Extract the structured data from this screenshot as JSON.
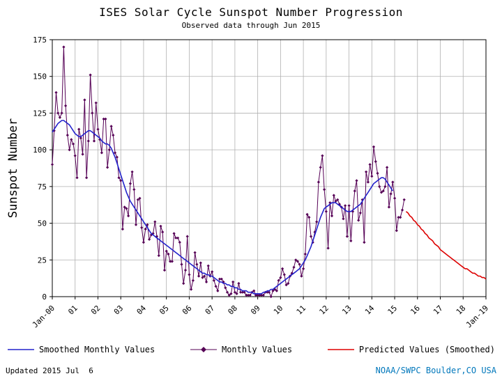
{
  "header": {
    "title": "ISES Solar Cycle Sunspot Number Progression",
    "subtitle": "Observed data through Jun 2015"
  },
  "footer": {
    "updated": "Updated 2015 Jul  6",
    "credit": "NOAA/SWPC Boulder,CO USA",
    "credit_color": "#0077bb"
  },
  "chart_data": {
    "type": "line",
    "title": "ISES Solar Cycle Sunspot Number Progression",
    "subtitle": "Observed data through Jun 2015",
    "xlabel": "",
    "ylabel": "Sunspot Number",
    "ylim": [
      0,
      175
    ],
    "y_ticks": [
      0,
      25,
      50,
      75,
      100,
      125,
      150,
      175
    ],
    "x_tick_labels": [
      "Jan-00",
      "01",
      "02",
      "03",
      "04",
      "05",
      "06",
      "07",
      "08",
      "09",
      "10",
      "11",
      "12",
      "13",
      "14",
      "15",
      "16",
      "17",
      "18",
      "Jan-19"
    ],
    "x_tick_interval_months": 12,
    "x_total_months": 228,
    "grid": true,
    "grid_color": "#b0b0b0",
    "legend_position": "bottom",
    "series": [
      {
        "id": "monthly",
        "name": "Monthly Values",
        "color": "#550055",
        "width": 1,
        "marker": "diamond",
        "start_month_index": 0,
        "values": [
          90,
          113,
          139,
          125,
          122,
          125,
          170,
          130,
          110,
          100,
          107,
          104,
          96,
          81,
          114,
          108,
          97,
          134,
          81,
          106,
          151,
          125,
          106,
          132,
          114,
          107,
          98,
          121,
          121,
          88,
          100,
          116,
          110,
          98,
          95,
          81,
          79,
          46,
          61,
          60,
          55,
          77,
          85,
          73,
          49,
          66,
          67,
          47,
          37,
          46,
          49,
          39,
          42,
          43,
          51,
          41,
          28,
          48,
          44,
          18,
          31,
          29,
          24,
          24,
          43,
          40,
          40,
          37,
          22,
          9,
          18,
          41,
          15,
          5,
          11,
          30,
          22,
          14,
          23,
          13,
          14,
          10,
          21,
          14,
          17,
          11,
          7,
          4,
          12,
          12,
          10,
          6,
          3,
          1,
          2,
          10,
          3,
          2,
          9,
          3,
          3,
          3,
          1,
          1,
          1,
          3,
          4,
          1,
          1,
          1,
          1,
          1,
          3,
          3,
          3,
          0,
          4,
          5,
          4,
          11,
          13,
          19,
          15,
          8,
          9,
          14,
          16,
          20,
          25,
          24,
          22,
          14,
          19,
          29,
          56,
          54,
          41,
          37,
          44,
          51,
          78,
          88,
          96,
          73,
          58,
          33,
          64,
          55,
          69,
          65,
          66,
          63,
          61,
          53,
          62,
          41,
          62,
          38,
          58,
          72,
          79,
          52,
          57,
          66,
          37,
          85,
          78,
          90,
          82,
          102,
          92,
          84,
          75,
          71,
          72,
          75,
          88,
          61,
          70,
          78,
          67,
          45,
          54,
          54,
          59,
          66
        ]
      },
      {
        "id": "smoothed",
        "name": "Smoothed Monthly Values",
        "color": "#2222cc",
        "width": 1.6,
        "start_month_index": 0,
        "values": [
          112,
          114,
          116,
          118,
          119,
          120,
          120,
          119,
          118,
          117,
          115,
          113,
          111,
          110,
          109,
          109,
          110,
          111,
          112,
          113,
          113,
          112,
          111,
          110,
          109,
          108,
          106,
          105,
          104,
          104,
          103,
          101,
          98,
          95,
          91,
          87,
          83,
          79,
          75,
          71,
          68,
          65,
          63,
          61,
          59,
          57,
          55,
          53,
          51,
          49,
          47,
          45,
          43,
          42,
          41,
          40,
          39,
          38,
          37,
          36,
          35,
          34,
          33,
          32,
          31,
          30,
          29,
          28,
          27,
          26,
          25,
          24,
          23,
          22,
          21,
          20,
          19,
          18,
          17,
          16,
          16,
          15,
          15,
          14,
          14,
          13,
          12,
          11,
          10,
          10,
          9,
          9,
          8,
          8,
          7,
          7,
          6,
          6,
          5,
          5,
          4,
          4,
          4,
          3,
          3,
          3,
          2,
          2,
          2,
          2,
          2,
          3,
          3,
          4,
          4,
          5,
          5,
          6,
          7,
          8,
          9,
          10,
          11,
          12,
          13,
          14,
          15,
          16,
          17,
          18,
          19,
          21,
          23,
          25,
          28,
          31,
          34,
          38,
          42,
          46,
          50,
          54,
          57,
          60,
          61,
          62,
          63,
          64,
          64,
          64,
          63,
          62,
          61,
          60,
          59,
          58,
          58,
          58,
          59,
          60,
          61,
          62,
          63,
          65,
          67,
          69,
          71,
          73,
          75,
          77,
          78,
          79,
          80,
          81,
          81,
          80,
          78,
          76,
          74,
          72
        ]
      },
      {
        "id": "predicted",
        "name": "Predicted Values (Smoothed)",
        "color": "#dd0000",
        "width": 1.6,
        "start_month_index": 186,
        "values": [
          58,
          57,
          55,
          54,
          52,
          51,
          49,
          48,
          46,
          45,
          43,
          42,
          40,
          39,
          38,
          36,
          35,
          34,
          32,
          31,
          30,
          29,
          28,
          27,
          26,
          25,
          24,
          23,
          22,
          21,
          20,
          19,
          19,
          18,
          17,
          16,
          16,
          15,
          14,
          14,
          13,
          13,
          12
        ]
      }
    ]
  }
}
